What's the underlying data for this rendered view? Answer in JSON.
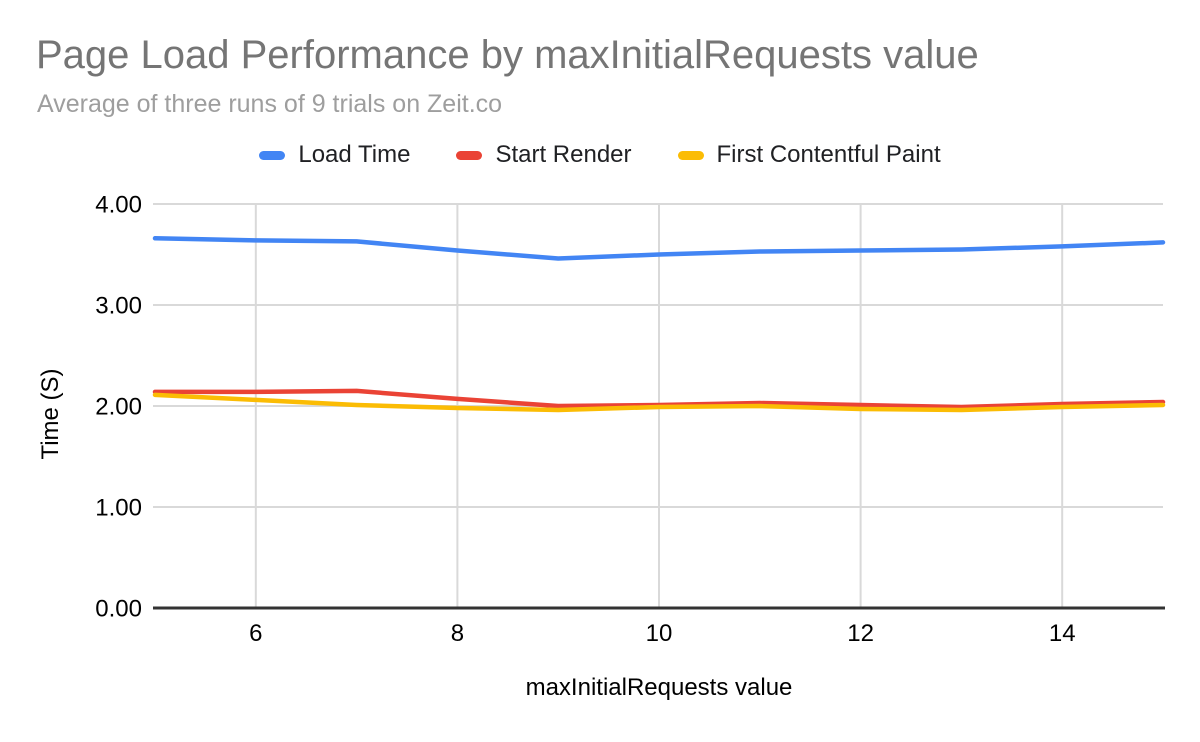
{
  "style": {
    "background": "#ffffff",
    "title_color": "#757575",
    "subtitle_color": "#9e9e9e",
    "grid_color": "#d9d9d9",
    "axis_color": "#333333",
    "tick_text_color": "#000000",
    "legend_text_color": "#202124"
  },
  "chart_data": {
    "type": "line",
    "title": "Page Load Performance by maxInitialRequests value",
    "subtitle": "Average of three runs of 9 trials on Zeit.co",
    "xlabel": "maxInitialRequests value",
    "ylabel": "Time (S)",
    "legend_position": "top",
    "grid": true,
    "x": [
      5,
      6,
      7,
      8,
      9,
      10,
      11,
      12,
      13,
      14,
      15
    ],
    "xlim": [
      5,
      15
    ],
    "ylim": [
      0,
      4
    ],
    "xticks": [
      {
        "v": 6,
        "label": "6"
      },
      {
        "v": 8,
        "label": "8"
      },
      {
        "v": 10,
        "label": "10"
      },
      {
        "v": 12,
        "label": "12"
      },
      {
        "v": 14,
        "label": "14"
      }
    ],
    "yticks": [
      {
        "v": 0,
        "label": "0.00"
      },
      {
        "v": 1,
        "label": "1.00"
      },
      {
        "v": 2,
        "label": "2.00"
      },
      {
        "v": 3,
        "label": "3.00"
      },
      {
        "v": 4,
        "label": "4.00"
      }
    ],
    "series": [
      {
        "name": "Load Time",
        "color": "#4285F4",
        "values": [
          3.66,
          3.64,
          3.63,
          3.54,
          3.46,
          3.5,
          3.53,
          3.54,
          3.55,
          3.58,
          3.62
        ]
      },
      {
        "name": "Start Render",
        "color": "#EA4335",
        "values": [
          2.14,
          2.14,
          2.15,
          2.07,
          2.0,
          2.01,
          2.03,
          2.01,
          1.99,
          2.02,
          2.04
        ]
      },
      {
        "name": "First Contentful Paint",
        "color": "#FBBC04",
        "values": [
          2.11,
          2.06,
          2.01,
          1.98,
          1.96,
          1.99,
          2.0,
          1.97,
          1.96,
          1.99,
          2.01
        ]
      }
    ]
  }
}
